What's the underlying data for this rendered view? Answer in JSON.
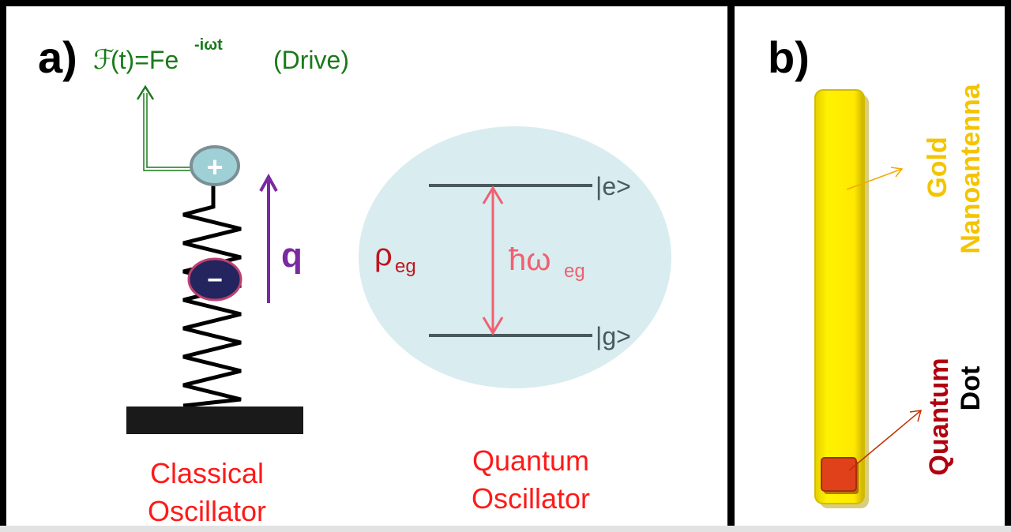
{
  "panel_a": {
    "label": "a)",
    "drive_symbol": "ℱ",
    "drive_expr_base": "(t)=Fe",
    "drive_expr_exp": "-iωt",
    "drive_note": "(Drive)",
    "plus_sign": "+",
    "minus_sign": "−",
    "displacement_label": "q",
    "classical_caption_line1": "Classical",
    "classical_caption_line2": "Oscillator",
    "quantum_caption_line1": "Quantum",
    "quantum_caption_line2": "Oscillator",
    "rho_main": "ρ",
    "rho_sub": "eg",
    "energy_main": "ħω",
    "energy_sub": "eg",
    "excited_state": "|e>",
    "ground_state": "|g>"
  },
  "panel_b": {
    "label": "b)",
    "antenna_label_line1": "Gold",
    "antenna_label_line2": "Nanoantenna",
    "dot_label_line1": "Quantum",
    "dot_label_line2": "Dot"
  },
  "colors": {
    "drive_green": "#1a7a1a",
    "caption_red": "#ff1a1a",
    "rho_red": "#c0141e",
    "energy_pink": "#f06070",
    "purple": "#7a2aa0",
    "gold_text": "#f5c400",
    "dot_text": "#b00010",
    "ellipse_fill": "#d9ecef",
    "rod_fill": "#ffee00",
    "dot_fill": "#e0401a"
  }
}
